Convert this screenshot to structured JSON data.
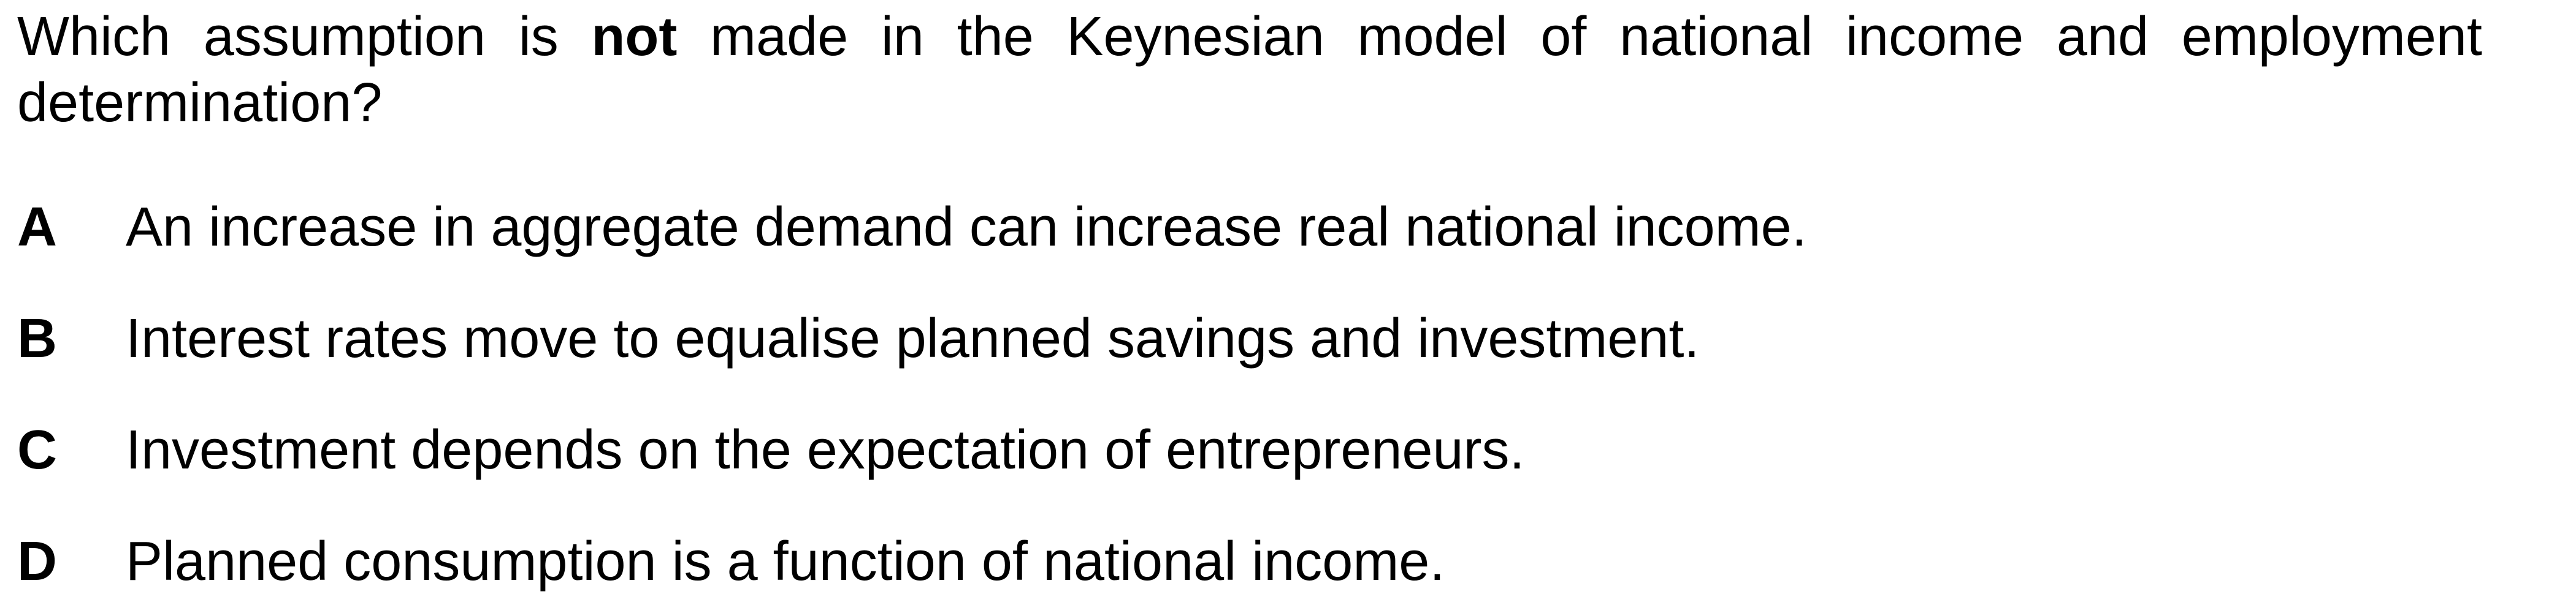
{
  "question": {
    "before": "Which assumption is ",
    "emphasis": "not",
    "after": " made in the Keynesian model of national income and employment determination?"
  },
  "options": [
    {
      "letter": "A",
      "text": "An increase in aggregate demand can increase real national income."
    },
    {
      "letter": "B",
      "text": "Interest rates move to equalise planned savings and investment."
    },
    {
      "letter": "C",
      "text": "Investment depends on the expectation of entrepreneurs."
    },
    {
      "letter": "D",
      "text": "Planned consumption is a function of national income."
    }
  ]
}
